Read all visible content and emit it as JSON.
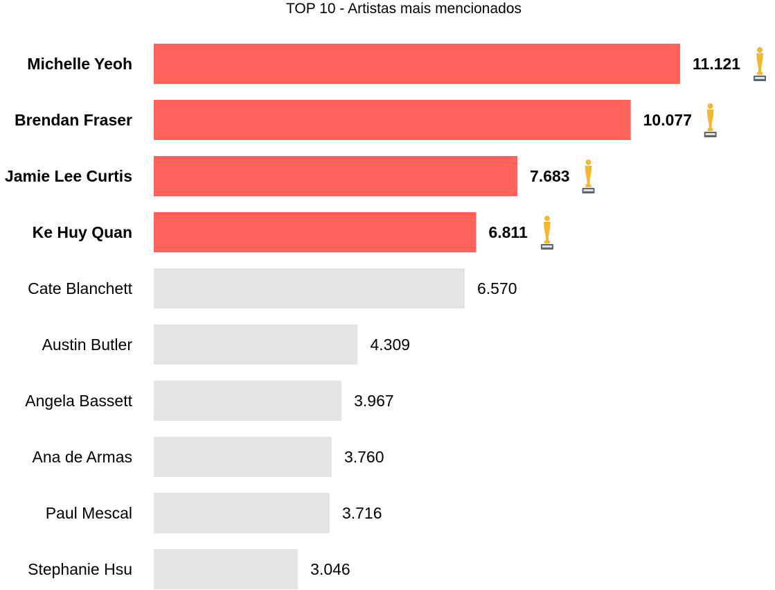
{
  "chart_data": {
    "type": "bar",
    "orientation": "horizontal",
    "title": "TOP 10 - Artistas mais mencionados",
    "xlabel": "",
    "ylabel": "",
    "grid": false,
    "legend": "none",
    "categories": [
      "Michelle Yeoh",
      "Brendan Fraser",
      "Jamie Lee Curtis",
      "Ke Huy Quan",
      "Cate Blanchett",
      "Austin Butler",
      "Angela Bassett",
      "Ana de Armas",
      "Paul Mescal",
      "Stephanie Hsu"
    ],
    "values": [
      11121,
      10077,
      7683,
      6811,
      6570,
      4309,
      3967,
      3760,
      3716,
      3046
    ],
    "value_labels": [
      "11.121",
      "10.077",
      "7.683",
      "6.811",
      "6.570",
      "4.309",
      "3.967",
      "3.760",
      "3.716",
      "3.046"
    ],
    "highlighted": [
      true,
      true,
      true,
      true,
      false,
      false,
      false,
      false,
      false,
      false
    ],
    "trophy_icon": [
      true,
      true,
      true,
      true,
      false,
      false,
      false,
      false,
      false,
      false
    ],
    "icon": "oscar-statuette-icon",
    "xlim": [
      0,
      11121
    ],
    "colors": {
      "highlight": "#ff625a",
      "default": "#e4e4e4",
      "trophy_gold": "#f5b731",
      "trophy_base": "#5b6770"
    }
  }
}
